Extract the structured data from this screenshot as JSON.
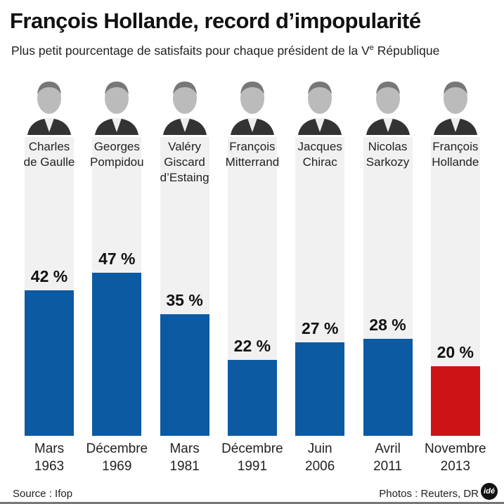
{
  "title": "François Hollande, record d’impopularité",
  "subtitle_main": "Plus petit pourcentage de satisfaits pour chaque président de la V",
  "subtitle_sup": "e",
  "subtitle_end": " République",
  "source": "Source : Ifop",
  "photos_credit": "Photos : Reuters, DR",
  "logo": "idé",
  "colors": {
    "bar": "#0b5aa2",
    "highlight": "#cc1417",
    "column_bg": "#f1f1f1"
  },
  "chart_data": {
    "type": "bar",
    "categories": [
      {
        "name": [
          "Charles",
          "de Gaulle"
        ],
        "date": [
          "Mars",
          "1963"
        ]
      },
      {
        "name": [
          "Georges",
          "Pompidou"
        ],
        "date": [
          "Décembre",
          "1969"
        ]
      },
      {
        "name": [
          "Valéry",
          "Giscard",
          "d’Estaing"
        ],
        "date": [
          "Mars",
          "1981"
        ]
      },
      {
        "name": [
          "François",
          "Mitterrand"
        ],
        "date": [
          "Décembre",
          "1991"
        ]
      },
      {
        "name": [
          "Jacques",
          "Chirac"
        ],
        "date": [
          "Juin",
          "2006"
        ]
      },
      {
        "name": [
          "Nicolas",
          "Sarkozy"
        ],
        "date": [
          "Avril",
          "2011"
        ]
      },
      {
        "name": [
          "François",
          "Hollande"
        ],
        "date": [
          "Novembre",
          "2013"
        ]
      }
    ],
    "values": [
      42,
      47,
      35,
      22,
      27,
      28,
      20
    ],
    "labels": [
      "42 %",
      "47 %",
      "35 %",
      "22 %",
      "27 %",
      "28 %",
      "20 %"
    ],
    "highlight_index": 6,
    "ylim": [
      0,
      86
    ]
  }
}
